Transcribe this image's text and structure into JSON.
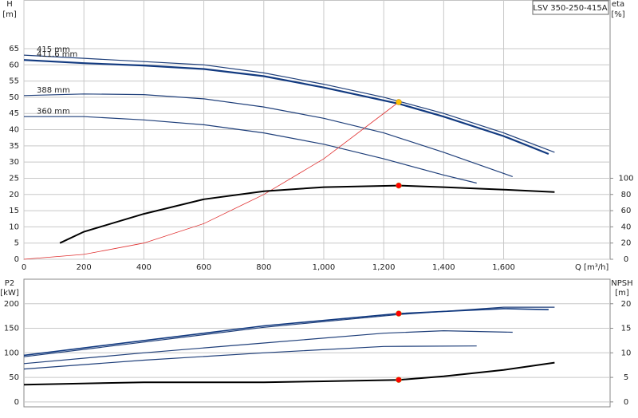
{
  "chart_data": [
    {
      "type": "line",
      "legend": "LSV 350-250-415A",
      "y_label": "H",
      "y_unit": "[m]",
      "y2_label": "eta",
      "y2_unit": "[%]",
      "x_label": "Q [m³/h]",
      "xlim": [
        0,
        1955
      ],
      "ylim": [
        0,
        80
      ],
      "y2lim": [
        0,
        320
      ],
      "xticks": [
        0,
        200,
        400,
        600,
        800,
        {
          "value": 1000,
          "label": "1,000"
        },
        {
          "value": 1200,
          "label": "1,200"
        },
        {
          "value": 1400,
          "label": "1,400"
        },
        {
          "value": 1600,
          "label": "1,600"
        }
      ],
      "yticks": [
        0,
        5,
        10,
        15,
        20,
        25,
        30,
        35,
        40,
        45,
        50,
        55,
        60,
        65
      ],
      "y2ticks": [
        0,
        20,
        40,
        60,
        80,
        100
      ],
      "grid": true,
      "series": [
        {
          "name": "415 mm",
          "color": "#1f3f7a",
          "width": 1.2,
          "x": [
            0,
            200,
            400,
            600,
            800,
            1000,
            1200,
            1400,
            1600,
            1770
          ],
          "values": [
            63,
            62,
            61,
            60,
            57.5,
            54,
            50,
            45,
            39,
            33
          ]
        },
        {
          "name": "411.6 mm",
          "color": "#123a80",
          "width": 2.2,
          "x": [
            0,
            200,
            400,
            600,
            800,
            1000,
            1250,
            1400,
            1600,
            1750
          ],
          "values": [
            61.5,
            60.5,
            59.8,
            58.7,
            56.5,
            53,
            48,
            44,
            38,
            32.5
          ]
        },
        {
          "name": "388 mm",
          "color": "#1f3f7a",
          "width": 1.2,
          "x": [
            0,
            200,
            400,
            600,
            800,
            1000,
            1200,
            1400,
            1630
          ],
          "values": [
            50.5,
            51,
            50.8,
            49.5,
            47,
            43.5,
            39,
            33,
            25.5
          ]
        },
        {
          "name": "360 mm",
          "color": "#1f3f7a",
          "width": 1.2,
          "x": [
            0,
            200,
            400,
            600,
            800,
            1000,
            1200,
            1400,
            1510
          ],
          "values": [
            44,
            44,
            43,
            41.5,
            39,
            35.5,
            31,
            26,
            23.5
          ]
        },
        {
          "color": "#e03030",
          "width": 0.8,
          "x": [
            0,
            200,
            400,
            600,
            800,
            1000,
            1250
          ],
          "values": [
            0,
            1.5,
            5,
            11,
            20,
            31,
            48.5
          ]
        },
        {
          "color": "#000000",
          "width": 2,
          "axis": "y2",
          "x": [
            120,
            200,
            400,
            600,
            800,
            1000,
            1250,
            1400,
            1600,
            1770
          ],
          "values": [
            20,
            34,
            56,
            74,
            84,
            89,
            91,
            89,
            86,
            83
          ]
        }
      ],
      "points": [
        {
          "x": 1250,
          "y": 48.5,
          "color": "#ffc000"
        },
        {
          "x": 1250,
          "y": 91,
          "axis": "y2",
          "color": "#ff0000"
        }
      ]
    },
    {
      "type": "line",
      "y_label": "P2",
      "y_unit": "[kW]",
      "y2_label": "NPSH",
      "y2_unit": "[m]",
      "xlim": [
        0,
        1955
      ],
      "ylim": [
        -10,
        250
      ],
      "y2lim": [
        -1,
        25
      ],
      "yticks": [
        0,
        50,
        100,
        150,
        200
      ],
      "y2ticks": [
        0,
        5,
        10,
        15,
        20
      ],
      "grid": true,
      "series": [
        {
          "color": "#1f3f7a",
          "width": 1.2,
          "x": [
            0,
            400,
            800,
            1250,
            1600,
            1770
          ],
          "values": [
            92,
            122,
            152,
            178,
            193,
            193
          ]
        },
        {
          "color": "#123a80",
          "width": 1.6,
          "x": [
            0,
            400,
            800,
            1250,
            1600,
            1750
          ],
          "values": [
            95,
            125,
            155,
            180,
            190,
            188
          ]
        },
        {
          "color": "#1f3f7a",
          "width": 1.2,
          "x": [
            0,
            400,
            800,
            1200,
            1400,
            1630
          ],
          "values": [
            78,
            100,
            120,
            140,
            145,
            142
          ]
        },
        {
          "color": "#1f3f7a",
          "width": 1.2,
          "x": [
            0,
            400,
            800,
            1200,
            1510
          ],
          "values": [
            67,
            85,
            100,
            113,
            114
          ]
        },
        {
          "color": "#000000",
          "width": 2,
          "axis": "y2",
          "x": [
            0,
            400,
            800,
            1000,
            1250,
            1400,
            1600,
            1770
          ],
          "values": [
            3.5,
            4,
            4,
            4.2,
            4.5,
            5.2,
            6.5,
            8
          ]
        }
      ],
      "points": [
        {
          "x": 1250,
          "y": 180,
          "color": "#ff0000"
        },
        {
          "x": 1250,
          "y": 4.5,
          "axis": "y2",
          "color": "#ff0000"
        }
      ]
    }
  ]
}
